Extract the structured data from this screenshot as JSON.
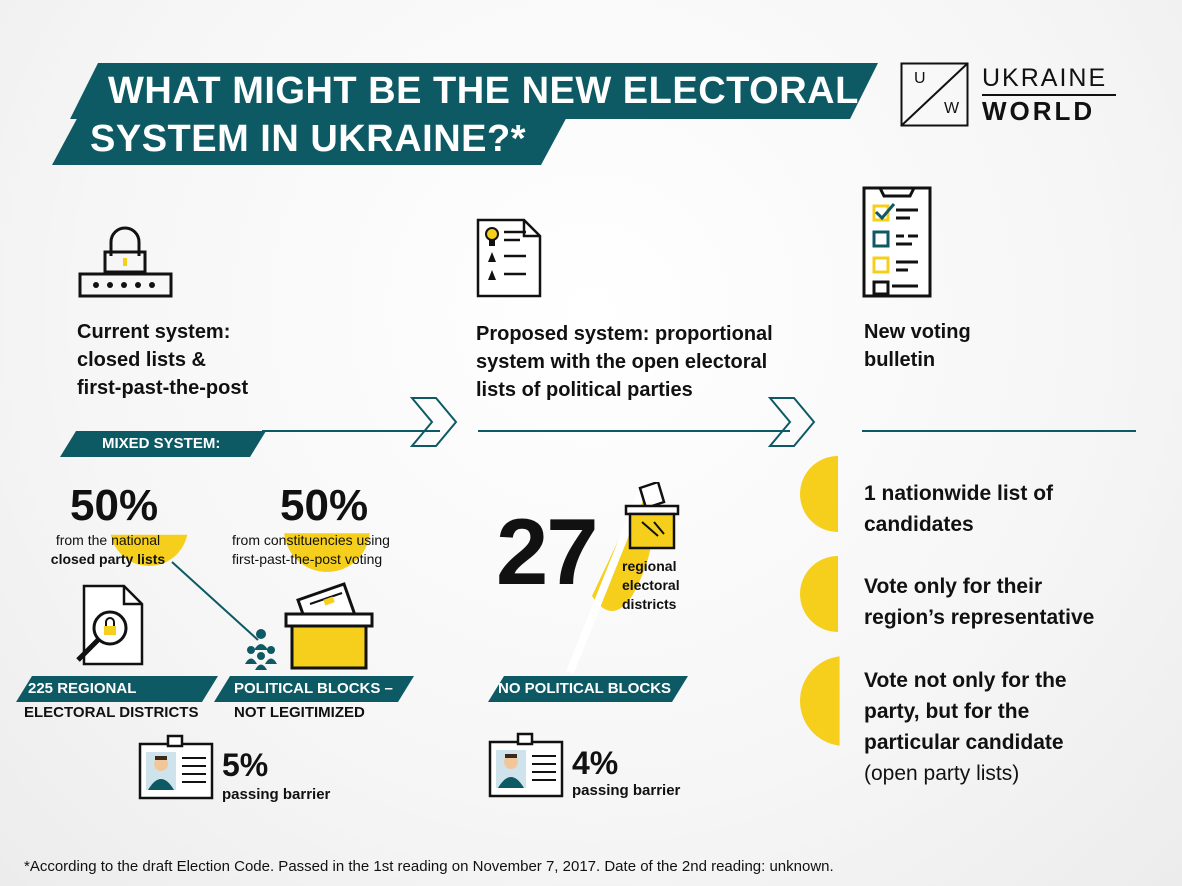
{
  "title": {
    "line1": "WHAT MIGHT BE THE NEW ELECTORAL",
    "line2": "SYSTEM IN UKRAINE?*"
  },
  "logo": {
    "u": "U",
    "w": "W",
    "ukraine": "UKRAINE",
    "world": "WORLD"
  },
  "current": {
    "heading_l1": "Current system:",
    "heading_l2": "closed lists &",
    "heading_l3": "first-past-the-post",
    "mixed_label": "MIXED SYSTEM:",
    "left_pct": "50%",
    "left_desc_l1": "from the national",
    "left_desc_l2": "closed party lists",
    "right_pct": "50%",
    "right_desc_l1": "from constituencies using",
    "right_desc_l2": "first-past-the-post voting",
    "districts_l1": "225 REGIONAL",
    "districts_l2": "ELECTORAL DISTRICTS",
    "blocks_l1": "POLITICAL BLOCKS –",
    "blocks_l2": "NOT LEGITIMIZED",
    "barrier_pct": "5%",
    "barrier_label": "passing barrier"
  },
  "proposed": {
    "heading_l1": "Proposed system: proportional",
    "heading_l2": "system with the open electoral",
    "heading_l3": "lists of political parties",
    "districts_num": "27",
    "districts_l1": "regional",
    "districts_l2": "electoral",
    "districts_l3": "districts",
    "blocks_label": "NO POLITICAL BLOCKS",
    "barrier_pct": "4%",
    "barrier_label": "passing barrier"
  },
  "bulletin": {
    "heading_l1": "New voting",
    "heading_l2": "bulletin",
    "item1_l1": "1 nationwide list of",
    "item1_l2": "candidates",
    "item2_l1": "Vote only for their",
    "item2_l2": "region’s representative",
    "item3_l1": "Vote not only for the",
    "item3_l2": "party, but for the",
    "item3_l3": "particular candidate",
    "item3_l4": "(open party lists)"
  },
  "footnote": "*According to the draft Election Code. Passed in the 1st reading on November 7, 2017. Date of the 2nd reading: unknown.",
  "colors": {
    "teal": "#0d5a64",
    "yellow": "#f5cf1c",
    "dark": "#111111"
  },
  "icons": [
    "lock-icon",
    "document-icon",
    "checklist-icon",
    "ballot-box-icon",
    "magnifier-document-icon",
    "people-icon",
    "id-badge-icon",
    "arrow-right-icon"
  ]
}
